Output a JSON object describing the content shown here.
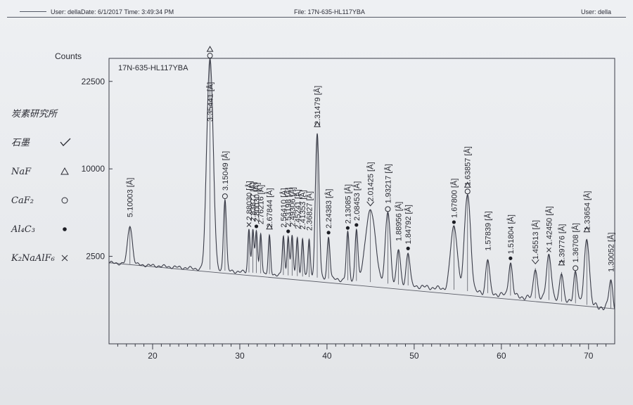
{
  "header": {
    "left": "User: dellaDate: 6/1/2017 Time: 3:49:34 PM",
    "center": "File: 17N-635-HL117YBA",
    "right": "User: della"
  },
  "chart_data": {
    "type": "line",
    "sample": "17N-635-HL117YBA",
    "ylabel": "Counts",
    "xlim": [
      15,
      73
    ],
    "y_ticks": [
      2500,
      10000,
      22500
    ],
    "x_ticks": [
      20,
      30,
      40,
      50,
      60,
      70
    ],
    "scale": "sqrt",
    "baseline": [
      [
        15,
        2150
      ],
      [
        73,
        400
      ]
    ],
    "peaks": [
      {
        "x": 17.4,
        "y": 2480,
        "label": "5.10003 [Å]",
        "w": 0.25
      },
      {
        "x": 26.58,
        "y": 24800,
        "label": "3.35441 [Å]",
        "w": 0.3,
        "marker": "triangle-circle"
      },
      {
        "x": 28.3,
        "y": 5100,
        "label": "3.15049 [Å]",
        "w": 0.15,
        "marker": "circle"
      },
      {
        "x": 31.05,
        "y": 2650,
        "label": "2.88030 [Å]",
        "w": 0.12,
        "marker": "cross"
      },
      {
        "x": 31.5,
        "y": 2580,
        "label": "2.83877 [Å]",
        "w": 0.12
      },
      {
        "x": 31.9,
        "y": 2550,
        "label": "2.80030 [Å]",
        "w": 0.12,
        "marker": "dot"
      },
      {
        "x": 32.4,
        "y": 2400,
        "label": "2.76216 [Å]",
        "w": 0.12
      },
      {
        "x": 33.4,
        "y": 2200,
        "label": "2.67844 [Å]",
        "w": 0.12,
        "marker": "triangle"
      },
      {
        "x": 35.0,
        "y": 2250,
        "label": "2.56410 [Å]",
        "w": 0.12
      },
      {
        "x": 35.55,
        "y": 2300,
        "label": "2.53198 [Å]",
        "w": 0.12,
        "marker": "dot"
      },
      {
        "x": 36.0,
        "y": 2350,
        "label": "2.49306 [Å]",
        "w": 0.12
      },
      {
        "x": 36.6,
        "y": 2200,
        "label": "2.45241 [Å]",
        "w": 0.12
      },
      {
        "x": 37.2,
        "y": 2180,
        "label": "2.41353 [Å]",
        "w": 0.12
      },
      {
        "x": 37.95,
        "y": 2120,
        "label": "2.36827 [Å]",
        "w": 0.12
      },
      {
        "x": 38.88,
        "y": 13000,
        "label": "2.31479 [Å]",
        "w": 0.18,
        "marker": "triangle"
      },
      {
        "x": 40.18,
        "y": 2350,
        "label": "2.24383 [Å]",
        "w": 0.15,
        "marker": "dot"
      },
      {
        "x": 42.38,
        "y": 2750,
        "label": "2.13085 [Å]",
        "w": 0.15,
        "marker": "dot"
      },
      {
        "x": 43.38,
        "y": 3000,
        "label": "2.08453 [Å]",
        "w": 0.15,
        "marker": "dot"
      },
      {
        "x": 44.98,
        "y": 4600,
        "label": "2.01425 [Å]",
        "w": 0.5,
        "marker": "v"
      },
      {
        "x": 46.98,
        "y": 4500,
        "label": "1.93217 [Å]",
        "w": 0.25,
        "marker": "circle"
      },
      {
        "x": 48.2,
        "y": 1750,
        "label": "1.88956 [Å]",
        "w": 0.2
      },
      {
        "x": 49.3,
        "y": 1600,
        "label": "1.84792 [Å]",
        "w": 0.2,
        "marker": "dot"
      },
      {
        "x": 54.56,
        "y": 3550,
        "label": "1.67800 [Å]",
        "w": 0.35,
        "marker": "dot"
      },
      {
        "x": 56.12,
        "y": 6400,
        "label": "1.63857 [Å]",
        "w": 0.3,
        "marker": "triangle-circle"
      },
      {
        "x": 58.43,
        "y": 1500,
        "label": "1.57839 [Å]",
        "w": 0.2
      },
      {
        "x": 61.05,
        "y": 1400,
        "label": "1.51804 [Å]",
        "w": 0.2,
        "marker": "dot"
      },
      {
        "x": 63.9,
        "y": 1200,
        "label": "1.45513 [Å]",
        "w": 0.2,
        "marker": "v"
      },
      {
        "x": 65.45,
        "y": 2000,
        "label": "1.42450 [Å]",
        "w": 0.25,
        "marker": "cross"
      },
      {
        "x": 66.9,
        "y": 1100,
        "label": "1.39776 [Å]",
        "w": 0.2,
        "marker": "triangle"
      },
      {
        "x": 68.5,
        "y": 1200,
        "label": "1.36708 [Å]",
        "w": 0.2,
        "marker": "circle"
      },
      {
        "x": 69.8,
        "y": 3100,
        "label": "1.33654 [Å]",
        "w": 0.25,
        "marker": "triangle"
      },
      {
        "x": 72.55,
        "y": 900,
        "label": "1.30052 [Å]",
        "w": 0.2
      }
    ]
  },
  "legend_notes": [
    {
      "text": "炭素研究所",
      "marker": "none"
    },
    {
      "text": "石墨",
      "marker": "check"
    },
    {
      "text": "NaF",
      "marker": "triangle"
    },
    {
      "text": "CaF₂",
      "marker": "circle"
    },
    {
      "text": "Al₄C₃",
      "marker": "dot"
    },
    {
      "text": "K₂NaAlF₆",
      "marker": "cross"
    }
  ]
}
